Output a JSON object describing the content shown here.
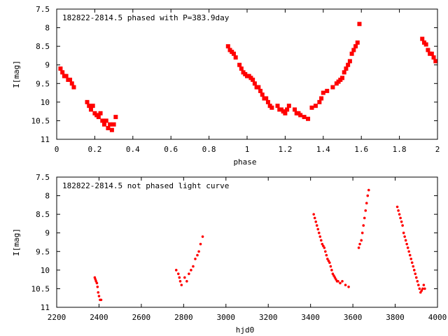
{
  "colors": {
    "point": "#ff0000",
    "frame": "#000000",
    "background": "#ffffff"
  },
  "chart_data": [
    {
      "type": "scatter",
      "title": "182822-2814.5 phased with P=383.9day",
      "xlabel": "phase",
      "ylabel": "I[mag]",
      "xlim": [
        0,
        2
      ],
      "ylim": [
        7.5,
        11
      ],
      "y_inverted": true,
      "grid": false,
      "x_ticks": [
        "0",
        "0.2",
        "0.4",
        "0.6",
        "0.8",
        "1",
        "1.2",
        "1.4",
        "1.6",
        "1.8",
        "2"
      ],
      "y_ticks": [
        "7.5",
        "8",
        "8.5",
        "9",
        "9.5",
        "10",
        "10.5",
        "11"
      ],
      "x": [
        0.02,
        0.03,
        0.04,
        0.05,
        0.06,
        0.07,
        0.08,
        0.09,
        0.16,
        0.17,
        0.18,
        0.19,
        0.2,
        0.21,
        0.22,
        0.23,
        0.24,
        0.25,
        0.26,
        0.27,
        0.28,
        0.29,
        0.3,
        0.31,
        0.9,
        0.91,
        0.92,
        0.93,
        0.94,
        0.96,
        0.97,
        0.98,
        0.99,
        1.0,
        1.01,
        1.02,
        1.03,
        1.04,
        1.05,
        1.06,
        1.07,
        1.08,
        1.09,
        1.1,
        1.11,
        1.12,
        1.13,
        1.16,
        1.17,
        1.18,
        1.19,
        1.2,
        1.21,
        1.22,
        1.25,
        1.26,
        1.27,
        1.28,
        1.3,
        1.32,
        1.34,
        1.36,
        1.38,
        1.39,
        1.4,
        1.42,
        1.45,
        1.47,
        1.48,
        1.49,
        1.5,
        1.51,
        1.52,
        1.53,
        1.54,
        1.55,
        1.56,
        1.57,
        1.58,
        1.59,
        1.92,
        1.93,
        1.94,
        1.95,
        1.96,
        1.97,
        1.98,
        1.99
      ],
      "y": [
        9.1,
        9.2,
        9.3,
        9.3,
        9.4,
        9.4,
        9.5,
        9.6,
        10.0,
        10.1,
        10.2,
        10.1,
        10.3,
        10.35,
        10.4,
        10.3,
        10.5,
        10.6,
        10.5,
        10.7,
        10.6,
        10.75,
        10.6,
        10.4,
        8.5,
        8.6,
        8.65,
        8.7,
        8.8,
        9.0,
        9.1,
        9.2,
        9.25,
        9.3,
        9.3,
        9.35,
        9.4,
        9.5,
        9.6,
        9.6,
        9.7,
        9.8,
        9.9,
        9.9,
        10.0,
        10.1,
        10.15,
        10.1,
        10.2,
        10.2,
        10.25,
        10.3,
        10.2,
        10.1,
        10.2,
        10.3,
        10.3,
        10.35,
        10.4,
        10.45,
        10.15,
        10.1,
        10.0,
        9.9,
        9.75,
        9.7,
        9.6,
        9.5,
        9.45,
        9.4,
        9.35,
        9.2,
        9.1,
        9.0,
        8.9,
        8.7,
        8.6,
        8.5,
        8.4,
        7.9,
        8.3,
        8.4,
        8.45,
        8.6,
        8.7,
        8.7,
        8.8,
        8.9
      ]
    },
    {
      "type": "scatter",
      "title": "182822-2814.5 not phased light curve",
      "xlabel": "hjd0",
      "ylabel": "I[mag]",
      "xlim": [
        2200,
        4000
      ],
      "ylim": [
        7.5,
        11
      ],
      "y_inverted": true,
      "grid": false,
      "x_ticks": [
        "2200",
        "2400",
        "2600",
        "2800",
        "3000",
        "3200",
        "3400",
        "3600",
        "3800",
        "4000"
      ],
      "y_ticks": [
        "7.5",
        "8",
        "8.5",
        "9",
        "9.5",
        "10",
        "10.5",
        "11"
      ],
      "x": [
        2380,
        2383,
        2386,
        2390,
        2393,
        2396,
        2400,
        2405,
        2410,
        2765,
        2775,
        2780,
        2784,
        2790,
        2805,
        2815,
        2825,
        2835,
        2845,
        2855,
        2865,
        2872,
        2880,
        2890,
        3415,
        3420,
        3425,
        3430,
        3435,
        3440,
        3445,
        3450,
        3455,
        3460,
        3465,
        3470,
        3475,
        3480,
        3485,
        3490,
        3495,
        3500,
        3505,
        3510,
        3515,
        3520,
        3525,
        3530,
        3540,
        3550,
        3565,
        3580,
        3628,
        3633,
        3640,
        3645,
        3650,
        3655,
        3660,
        3665,
        3670,
        3675,
        3810,
        3815,
        3820,
        3825,
        3830,
        3835,
        3840,
        3845,
        3850,
        3855,
        3860,
        3865,
        3870,
        3875,
        3880,
        3885,
        3890,
        3895,
        3900,
        3905,
        3910,
        3915,
        3920,
        3925,
        3930,
        3935,
        3940
      ],
      "y": [
        10.2,
        10.25,
        10.3,
        10.35,
        10.45,
        10.6,
        10.7,
        10.8,
        10.8,
        10.0,
        10.1,
        10.2,
        10.3,
        10.4,
        10.2,
        10.3,
        10.1,
        10.0,
        9.9,
        9.7,
        9.6,
        9.5,
        9.3,
        9.1,
        8.5,
        8.6,
        8.7,
        8.8,
        8.9,
        9.0,
        9.1,
        9.2,
        9.3,
        9.35,
        9.4,
        9.5,
        9.6,
        9.7,
        9.75,
        9.8,
        9.9,
        10.0,
        10.1,
        10.15,
        10.2,
        10.25,
        10.3,
        10.3,
        10.35,
        10.3,
        10.4,
        10.45,
        9.4,
        9.3,
        9.2,
        9.0,
        8.8,
        8.6,
        8.4,
        8.2,
        8.0,
        7.85,
        8.3,
        8.4,
        8.5,
        8.6,
        8.7,
        8.8,
        9.0,
        9.1,
        9.2,
        9.3,
        9.4,
        9.5,
        9.6,
        9.7,
        9.8,
        9.9,
        10.0,
        10.1,
        10.2,
        10.3,
        10.4,
        10.5,
        10.6,
        10.55,
        10.5,
        10.4,
        10.5
      ]
    }
  ]
}
